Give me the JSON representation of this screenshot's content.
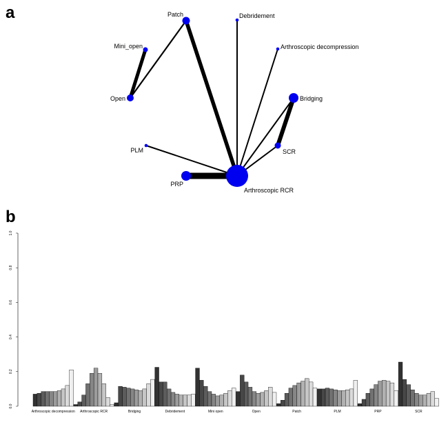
{
  "panel_a": {
    "letter": "a",
    "nodes": [
      {
        "id": "arcr",
        "label": "Arthroscopic RCR"
      },
      {
        "id": "patch",
        "label": "Patch"
      },
      {
        "id": "debr",
        "label": "Debridement"
      },
      {
        "id": "adec",
        "label": "Arthroscopic decompression"
      },
      {
        "id": "mini",
        "label": "Mini_open"
      },
      {
        "id": "open",
        "label": "Open"
      },
      {
        "id": "bridging",
        "label": "Bridging"
      },
      {
        "id": "scr",
        "label": "SCR"
      },
      {
        "id": "plm",
        "label": "PLM"
      },
      {
        "id": "prp",
        "label": "PRP"
      }
    ]
  },
  "chart_data": {
    "type": "bar",
    "letter": "b",
    "ylim": [
      0,
      1
    ],
    "yticks": [
      "0.0",
      "0.2",
      "0.4",
      "0.6",
      "0.8",
      "1.0"
    ],
    "categories": [
      "Arthroscopic decompression",
      "Arthroscopic RCR",
      "Bridging",
      "Debridement",
      "Mini open",
      "Open",
      "Patch",
      "PLM",
      "PRP",
      "SCR"
    ],
    "series_count": 10,
    "values": [
      [
        0.07,
        0.075,
        0.085,
        0.085,
        0.085,
        0.085,
        0.09,
        0.1,
        0.12,
        0.21
      ],
      [
        0.01,
        0.025,
        0.065,
        0.13,
        0.19,
        0.22,
        0.19,
        0.13,
        0.05,
        0.01
      ],
      [
        0.02,
        0.115,
        0.11,
        0.105,
        0.1,
        0.095,
        0.09,
        0.1,
        0.13,
        0.155
      ],
      [
        0.225,
        0.14,
        0.14,
        0.1,
        0.08,
        0.07,
        0.065,
        0.065,
        0.065,
        0.07
      ],
      [
        0.22,
        0.15,
        0.115,
        0.085,
        0.07,
        0.06,
        0.065,
        0.075,
        0.09,
        0.105
      ],
      [
        0.085,
        0.18,
        0.14,
        0.11,
        0.085,
        0.075,
        0.08,
        0.09,
        0.11,
        0.08
      ],
      [
        0.015,
        0.035,
        0.075,
        0.105,
        0.12,
        0.135,
        0.145,
        0.16,
        0.14,
        0.105
      ],
      [
        0.1,
        0.1,
        0.105,
        0.1,
        0.095,
        0.09,
        0.09,
        0.095,
        0.1,
        0.15
      ],
      [
        0.015,
        0.04,
        0.075,
        0.1,
        0.125,
        0.145,
        0.15,
        0.145,
        0.135,
        0.09
      ],
      [
        0.255,
        0.155,
        0.125,
        0.095,
        0.075,
        0.065,
        0.065,
        0.075,
        0.085,
        0.045
      ]
    ]
  }
}
